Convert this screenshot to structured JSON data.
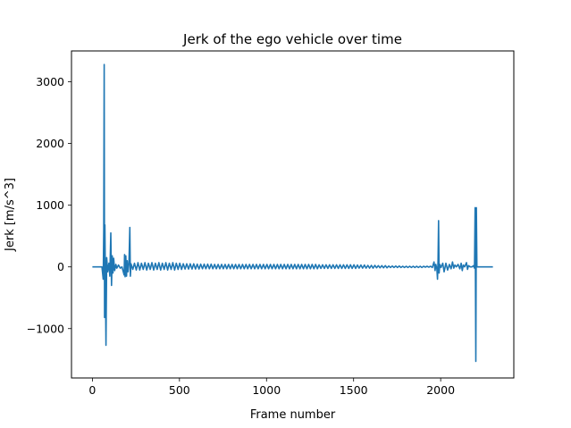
{
  "chart_data": {
    "type": "line",
    "title": "Jerk of the ego vehicle over time",
    "xlabel": "Frame number",
    "ylabel": "Jerk [m/s^3]",
    "xlim": [
      -120,
      2420
    ],
    "ylim": [
      -1800,
      3500
    ],
    "xticks": [
      0,
      500,
      1000,
      1500,
      2000
    ],
    "yticks": [
      -1000,
      0,
      1000,
      2000,
      3000
    ],
    "grid": false,
    "line_color": "#1f77b4",
    "series": [
      {
        "values": [
          [
            0,
            0
          ],
          [
            55,
            0
          ],
          [
            62,
            -200
          ],
          [
            65,
            600
          ],
          [
            68,
            3280
          ],
          [
            70,
            -820
          ],
          [
            72,
            680
          ],
          [
            75,
            -300
          ],
          [
            78,
            -1270
          ],
          [
            82,
            150
          ],
          [
            88,
            -80
          ],
          [
            95,
            60
          ],
          [
            100,
            -150
          ],
          [
            106,
            550
          ],
          [
            110,
            -300
          ],
          [
            114,
            180
          ],
          [
            118,
            -100
          ],
          [
            122,
            140
          ],
          [
            128,
            -60
          ],
          [
            135,
            40
          ],
          [
            140,
            -20
          ],
          [
            150,
            30
          ],
          [
            160,
            -20
          ],
          [
            170,
            0
          ],
          [
            182,
            -130
          ],
          [
            185,
            200
          ],
          [
            188,
            -160
          ],
          [
            192,
            180
          ],
          [
            196,
            -150
          ],
          [
            200,
            100
          ],
          [
            205,
            -80
          ],
          [
            210,
            60
          ],
          [
            215,
            640
          ],
          [
            218,
            -150
          ],
          [
            222,
            50
          ],
          [
            232,
            -40
          ],
          [
            242,
            60
          ],
          [
            252,
            -50
          ],
          [
            262,
            70
          ],
          [
            272,
            -50
          ],
          [
            282,
            60
          ],
          [
            292,
            -40
          ],
          [
            302,
            70
          ],
          [
            312,
            -50
          ],
          [
            322,
            60
          ],
          [
            332,
            -40
          ],
          [
            342,
            70
          ],
          [
            352,
            -50
          ],
          [
            362,
            60
          ],
          [
            372,
            -40
          ],
          [
            382,
            70
          ],
          [
            392,
            -50
          ],
          [
            402,
            60
          ],
          [
            412,
            -40
          ],
          [
            422,
            70
          ],
          [
            432,
            -50
          ],
          [
            442,
            60
          ],
          [
            452,
            -40
          ],
          [
            462,
            70
          ],
          [
            472,
            -50
          ],
          [
            482,
            60
          ],
          [
            492,
            -40
          ],
          [
            502,
            60
          ],
          [
            512,
            -40
          ],
          [
            522,
            50
          ],
          [
            532,
            -35
          ],
          [
            542,
            50
          ],
          [
            552,
            -35
          ],
          [
            562,
            50
          ],
          [
            572,
            -35
          ],
          [
            582,
            50
          ],
          [
            592,
            -35
          ],
          [
            602,
            45
          ],
          [
            612,
            -35
          ],
          [
            622,
            45
          ],
          [
            632,
            -30
          ],
          [
            642,
            45
          ],
          [
            652,
            -30
          ],
          [
            662,
            45
          ],
          [
            672,
            -30
          ],
          [
            682,
            45
          ],
          [
            692,
            -30
          ],
          [
            702,
            40
          ],
          [
            712,
            -30
          ],
          [
            722,
            40
          ],
          [
            732,
            -30
          ],
          [
            742,
            40
          ],
          [
            752,
            -30
          ],
          [
            762,
            40
          ],
          [
            772,
            -30
          ],
          [
            782,
            40
          ],
          [
            792,
            -30
          ],
          [
            802,
            40
          ],
          [
            812,
            -30
          ],
          [
            822,
            40
          ],
          [
            832,
            -30
          ],
          [
            842,
            40
          ],
          [
            852,
            -30
          ],
          [
            862,
            40
          ],
          [
            872,
            -30
          ],
          [
            882,
            40
          ],
          [
            892,
            -30
          ],
          [
            902,
            40
          ],
          [
            912,
            -30
          ],
          [
            922,
            40
          ],
          [
            932,
            -30
          ],
          [
            942,
            40
          ],
          [
            952,
            -30
          ],
          [
            962,
            40
          ],
          [
            972,
            -30
          ],
          [
            982,
            40
          ],
          [
            992,
            -30
          ],
          [
            1002,
            40
          ],
          [
            1012,
            -30
          ],
          [
            1022,
            40
          ],
          [
            1032,
            -30
          ],
          [
            1042,
            40
          ],
          [
            1052,
            -30
          ],
          [
            1062,
            40
          ],
          [
            1072,
            -30
          ],
          [
            1082,
            40
          ],
          [
            1092,
            -30
          ],
          [
            1102,
            40
          ],
          [
            1112,
            -30
          ],
          [
            1122,
            40
          ],
          [
            1132,
            -30
          ],
          [
            1142,
            40
          ],
          [
            1152,
            -30
          ],
          [
            1162,
            40
          ],
          [
            1172,
            -30
          ],
          [
            1182,
            40
          ],
          [
            1192,
            -30
          ],
          [
            1202,
            40
          ],
          [
            1212,
            -30
          ],
          [
            1222,
            40
          ],
          [
            1232,
            -30
          ],
          [
            1242,
            40
          ],
          [
            1252,
            -30
          ],
          [
            1262,
            40
          ],
          [
            1272,
            -30
          ],
          [
            1282,
            40
          ],
          [
            1292,
            -30
          ],
          [
            1302,
            35
          ],
          [
            1312,
            -25
          ],
          [
            1322,
            35
          ],
          [
            1332,
            -25
          ],
          [
            1342,
            35
          ],
          [
            1352,
            -25
          ],
          [
            1362,
            35
          ],
          [
            1372,
            -25
          ],
          [
            1382,
            35
          ],
          [
            1392,
            -25
          ],
          [
            1402,
            35
          ],
          [
            1412,
            -25
          ],
          [
            1422,
            35
          ],
          [
            1432,
            -25
          ],
          [
            1442,
            35
          ],
          [
            1452,
            -25
          ],
          [
            1462,
            35
          ],
          [
            1472,
            -25
          ],
          [
            1482,
            35
          ],
          [
            1492,
            -25
          ],
          [
            1502,
            35
          ],
          [
            1512,
            -25
          ],
          [
            1522,
            30
          ],
          [
            1532,
            -20
          ],
          [
            1542,
            30
          ],
          [
            1552,
            -20
          ],
          [
            1562,
            30
          ],
          [
            1572,
            -20
          ],
          [
            1582,
            25
          ],
          [
            1592,
            -20
          ],
          [
            1602,
            25
          ],
          [
            1612,
            -20
          ],
          [
            1622,
            25
          ],
          [
            1632,
            -15
          ],
          [
            1642,
            20
          ],
          [
            1652,
            -15
          ],
          [
            1662,
            20
          ],
          [
            1672,
            -15
          ],
          [
            1682,
            20
          ],
          [
            1692,
            -15
          ],
          [
            1702,
            15
          ],
          [
            1712,
            -10
          ],
          [
            1722,
            15
          ],
          [
            1732,
            -10
          ],
          [
            1742,
            15
          ],
          [
            1752,
            -10
          ],
          [
            1762,
            15
          ],
          [
            1772,
            -10
          ],
          [
            1782,
            10
          ],
          [
            1792,
            -10
          ],
          [
            1802,
            10
          ],
          [
            1812,
            -10
          ],
          [
            1822,
            10
          ],
          [
            1832,
            -10
          ],
          [
            1842,
            10
          ],
          [
            1852,
            -10
          ],
          [
            1862,
            10
          ],
          [
            1872,
            -10
          ],
          [
            1882,
            10
          ],
          [
            1892,
            -10
          ],
          [
            1902,
            10
          ],
          [
            1912,
            -5
          ],
          [
            1922,
            10
          ],
          [
            1932,
            -5
          ],
          [
            1942,
            10
          ],
          [
            1952,
            -10
          ],
          [
            1962,
            80
          ],
          [
            1968,
            -60
          ],
          [
            1972,
            40
          ],
          [
            1978,
            -30
          ],
          [
            1982,
            -200
          ],
          [
            1985,
            100
          ],
          [
            1988,
            750
          ],
          [
            1991,
            -100
          ],
          [
            1995,
            40
          ],
          [
            2002,
            -10
          ],
          [
            2012,
            60
          ],
          [
            2020,
            -80
          ],
          [
            2030,
            60
          ],
          [
            2040,
            -50
          ],
          [
            2050,
            40
          ],
          [
            2060,
            -30
          ],
          [
            2068,
            80
          ],
          [
            2075,
            -20
          ],
          [
            2082,
            30
          ],
          [
            2090,
            0
          ],
          [
            2100,
            40
          ],
          [
            2110,
            -30
          ],
          [
            2118,
            60
          ],
          [
            2124,
            -60
          ],
          [
            2130,
            30
          ],
          [
            2138,
            0
          ],
          [
            2148,
            70
          ],
          [
            2154,
            -40
          ],
          [
            2160,
            20
          ],
          [
            2170,
            0
          ],
          [
            2180,
            0
          ],
          [
            2188,
            20
          ],
          [
            2194,
            -20
          ],
          [
            2198,
            960
          ],
          [
            2202,
            -1530
          ],
          [
            2205,
            960
          ],
          [
            2208,
            0
          ],
          [
            2230,
            0
          ],
          [
            2260,
            0
          ],
          [
            2300,
            0
          ]
        ]
      }
    ]
  }
}
